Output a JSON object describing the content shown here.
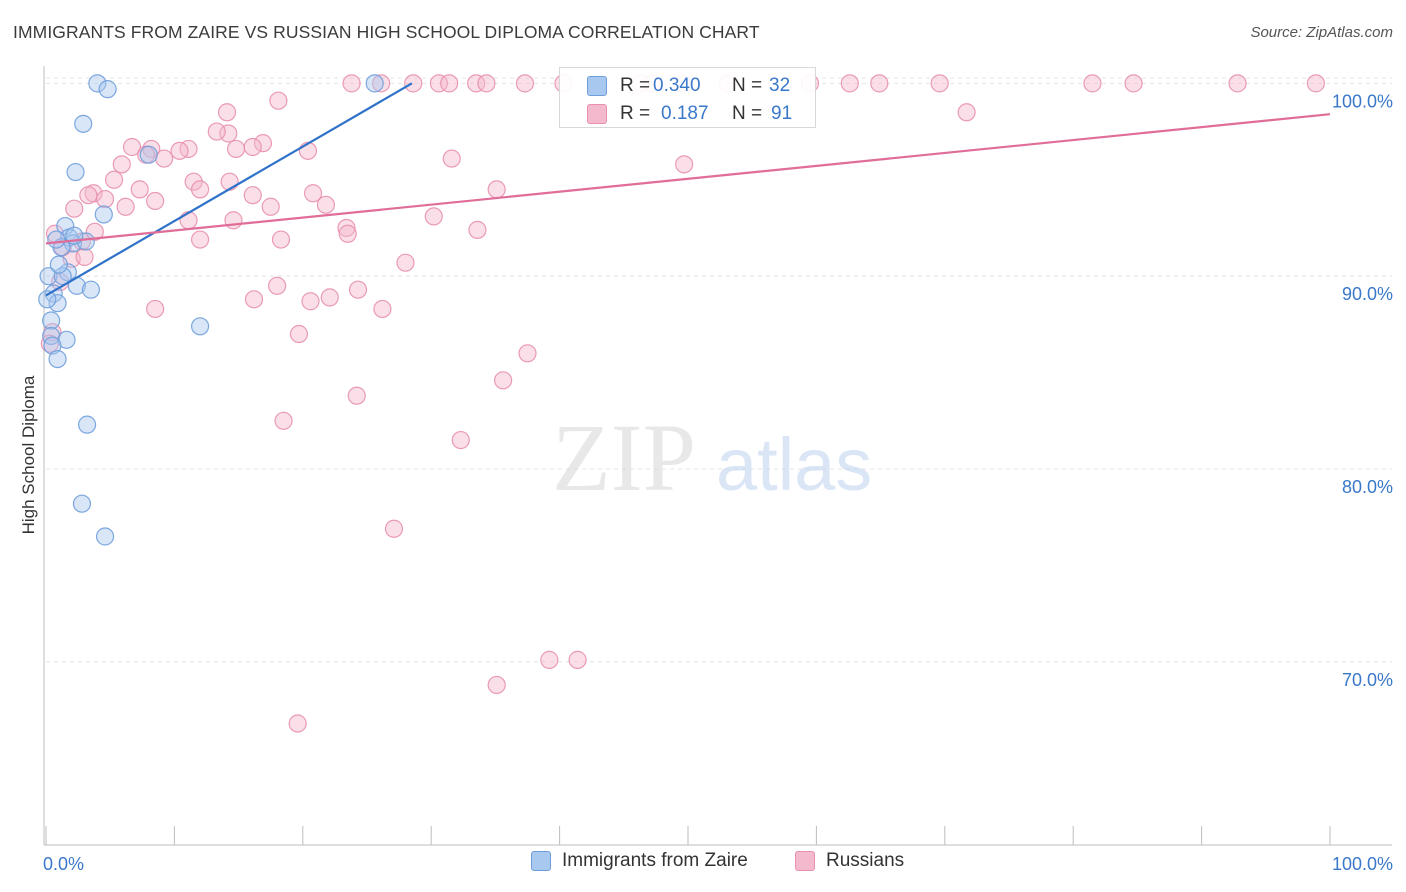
{
  "title": "IMMIGRANTS FROM ZAIRE VS RUSSIAN HIGH SCHOOL DIPLOMA CORRELATION CHART",
  "source": "Source: ZipAtlas.com",
  "watermark": {
    "zip": "ZIP",
    "atlas": "atlas"
  },
  "colors": {
    "blue_fill": "#a9c8f0",
    "blue_stroke": "#6f9fdb",
    "blue_line": "#2f72c9",
    "pink_fill": "#f5b9cd",
    "pink_stroke": "#e890ae",
    "pink_line": "#e06c98",
    "axis_text": "#3a78c9",
    "grid": "#e4e4e4"
  },
  "legend_stats": [
    {
      "r_label": "R =",
      "r_value": "0.340",
      "n_label": "N =",
      "n_value": "32",
      "series": "blue"
    },
    {
      "r_label": "R =",
      "r_value": "0.187",
      "n_label": "N =",
      "n_value": "91",
      "series": "pink"
    }
  ],
  "chart_data": {
    "type": "scatter",
    "title": "IMMIGRANTS FROM ZAIRE VS RUSSIAN HIGH SCHOOL DIPLOMA CORRELATION CHART",
    "xlabel": "",
    "ylabel": "High School Diploma",
    "xlim": [
      0,
      100
    ],
    "ylim": [
      60.5,
      100.9
    ],
    "x_tick_labels": [
      {
        "value": 0,
        "label": "0.0%"
      },
      {
        "value": 100,
        "label": "100.0%"
      }
    ],
    "y_ticks": [
      {
        "value": 70,
        "label": "70.0%"
      },
      {
        "value": 80,
        "label": "80.0%"
      },
      {
        "value": 90,
        "label": "90.0%"
      },
      {
        "value": 100,
        "label": "100.0%"
      }
    ],
    "legend": [
      "Immigrants from Zaire",
      "Russians"
    ],
    "series": [
      {
        "name": "Immigrants from Zaire",
        "color": "blue",
        "trend": [
          [
            0,
            89.0
          ],
          [
            28.5,
            100.0
          ]
        ],
        "points": [
          [
            4,
            100
          ],
          [
            4.8,
            99.7
          ],
          [
            2.9,
            97.9
          ],
          [
            2.3,
            95.4
          ],
          [
            1.5,
            92.6
          ],
          [
            1.8,
            92.0
          ],
          [
            2.1,
            91.7
          ],
          [
            1.2,
            91.5
          ],
          [
            0.8,
            91.9
          ],
          [
            3.1,
            91.8
          ],
          [
            0.2,
            90.0
          ],
          [
            1.7,
            90.2
          ],
          [
            1.3,
            90.0
          ],
          [
            2.4,
            89.5
          ],
          [
            0.6,
            89.1
          ],
          [
            0.9,
            88.6
          ],
          [
            0.1,
            88.8
          ],
          [
            0.4,
            87.7
          ],
          [
            0.4,
            86.9
          ],
          [
            1.6,
            86.7
          ],
          [
            0.5,
            86.4
          ],
          [
            0.9,
            85.7
          ],
          [
            3.5,
            89.3
          ],
          [
            4.5,
            93.2
          ],
          [
            8.0,
            96.3
          ],
          [
            12.0,
            87.4
          ],
          [
            3.2,
            82.3
          ],
          [
            2.8,
            78.2
          ],
          [
            4.6,
            76.5
          ],
          [
            25.6,
            100
          ],
          [
            2.2,
            92.1
          ],
          [
            1.0,
            90.6
          ]
        ]
      },
      {
        "name": "Russians",
        "color": "pink",
        "trend": [
          [
            0,
            91.7
          ],
          [
            100,
            98.4
          ]
        ],
        "points": [
          [
            23.8,
            100
          ],
          [
            26.1,
            100
          ],
          [
            28.6,
            100
          ],
          [
            30.6,
            100
          ],
          [
            31.4,
            100
          ],
          [
            33.5,
            100
          ],
          [
            34.3,
            100
          ],
          [
            37.3,
            100
          ],
          [
            40.3,
            100
          ],
          [
            47.2,
            100
          ],
          [
            49.5,
            100
          ],
          [
            53.1,
            100
          ],
          [
            59.5,
            100
          ],
          [
            62.6,
            100
          ],
          [
            64.9,
            100
          ],
          [
            69.6,
            100
          ],
          [
            81.5,
            100
          ],
          [
            92.8,
            100
          ],
          [
            98.9,
            100
          ],
          [
            71.7,
            98.5
          ],
          [
            14.1,
            98.5
          ],
          [
            18.1,
            99.1
          ],
          [
            14.2,
            97.4
          ],
          [
            13.3,
            97.5
          ],
          [
            16.9,
            96.9
          ],
          [
            11.1,
            96.6
          ],
          [
            8.2,
            96.6
          ],
          [
            6.7,
            96.7
          ],
          [
            14.8,
            96.6
          ],
          [
            20.4,
            96.5
          ],
          [
            7.8,
            96.3
          ],
          [
            9.2,
            96.1
          ],
          [
            5.9,
            95.8
          ],
          [
            31.6,
            96.1
          ],
          [
            49.7,
            95.8
          ],
          [
            5.3,
            95.0
          ],
          [
            11.5,
            94.9
          ],
          [
            14.3,
            94.9
          ],
          [
            12.0,
            94.5
          ],
          [
            7.3,
            94.5
          ],
          [
            16.1,
            94.2
          ],
          [
            3.7,
            94.3
          ],
          [
            4.6,
            94.0
          ],
          [
            20.8,
            94.3
          ],
          [
            35.1,
            94.5
          ],
          [
            8.5,
            93.9
          ],
          [
            2.2,
            93.5
          ],
          [
            6.2,
            93.6
          ],
          [
            17.5,
            93.6
          ],
          [
            21.8,
            93.7
          ],
          [
            14.6,
            92.9
          ],
          [
            11.1,
            92.9
          ],
          [
            23.4,
            92.5
          ],
          [
            30.2,
            93.1
          ],
          [
            33.6,
            92.4
          ],
          [
            2.8,
            91.8
          ],
          [
            12.0,
            91.9
          ],
          [
            18.3,
            91.9
          ],
          [
            23.5,
            92.2
          ],
          [
            1.3,
            91.5
          ],
          [
            3.8,
            92.3
          ],
          [
            24.3,
            89.3
          ],
          [
            22.1,
            88.9
          ],
          [
            26.2,
            88.3
          ],
          [
            16.2,
            88.8
          ],
          [
            8.5,
            88.3
          ],
          [
            18.0,
            89.5
          ],
          [
            20.6,
            88.7
          ],
          [
            28.0,
            90.7
          ],
          [
            1.1,
            89.7
          ],
          [
            0.5,
            87.1
          ],
          [
            0.3,
            86.5
          ],
          [
            19.7,
            87.0
          ],
          [
            37.5,
            86.0
          ],
          [
            35.6,
            84.6
          ],
          [
            24.2,
            83.8
          ],
          [
            18.5,
            82.5
          ],
          [
            32.3,
            81.5
          ],
          [
            27.1,
            76.9
          ],
          [
            39.2,
            70.1
          ],
          [
            41.4,
            70.1
          ],
          [
            35.1,
            68.8
          ],
          [
            19.6,
            66.8
          ],
          [
            2.0,
            90.9
          ],
          [
            3.3,
            94.2
          ],
          [
            10.4,
            96.5
          ],
          [
            16.1,
            96.7
          ],
          [
            46.3,
            100
          ],
          [
            84.7,
            100
          ],
          [
            3.0,
            91.0
          ],
          [
            0.7,
            92.2
          ]
        ]
      }
    ]
  }
}
